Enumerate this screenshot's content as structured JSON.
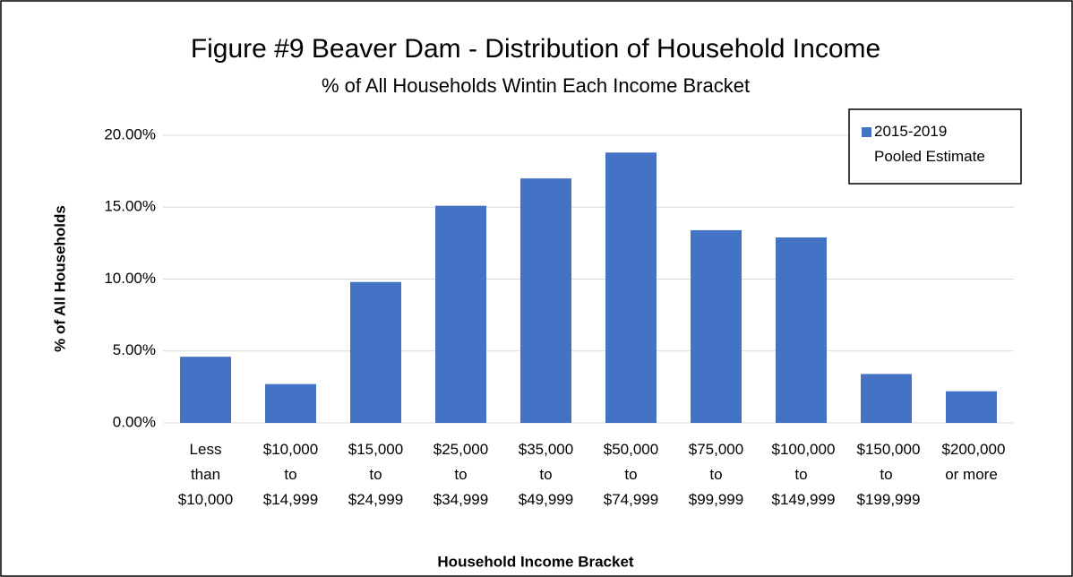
{
  "chart_data": {
    "type": "bar",
    "title": "Figure #9  Beaver Dam - Distribution of Household Income",
    "subtitle": "% of All Households Wintin Each Income Bracket",
    "x_label": "Household Income Bracket",
    "y_label": "% of All Households",
    "categories": [
      "Less than $10,000",
      "$10,000 to $14,999",
      "$15,000 to $24,999",
      "$25,000 to $34,999",
      "$35,000 to $49,999",
      "$50,000 to $74,999",
      "$75,000 to $99,999",
      "$100,000 to $149,999",
      "$150,000 to $199,999",
      "$200,000 or more"
    ],
    "series": [
      {
        "name": "2015-2019 Pooled Estimate",
        "color": "#4472c4",
        "values": [
          4.6,
          2.7,
          9.8,
          15.1,
          17.0,
          18.8,
          13.4,
          12.9,
          3.4,
          2.2
        ]
      }
    ],
    "ylim": [
      0,
      20
    ],
    "yticks": [
      {
        "value": 0,
        "label": "0.00%"
      },
      {
        "value": 5,
        "label": "5.00%"
      },
      {
        "value": 10,
        "label": "10.00%"
      },
      {
        "value": 15,
        "label": "15.00%"
      },
      {
        "value": 20,
        "label": "20.00%"
      }
    ],
    "grid": true,
    "legend": "top-right"
  }
}
